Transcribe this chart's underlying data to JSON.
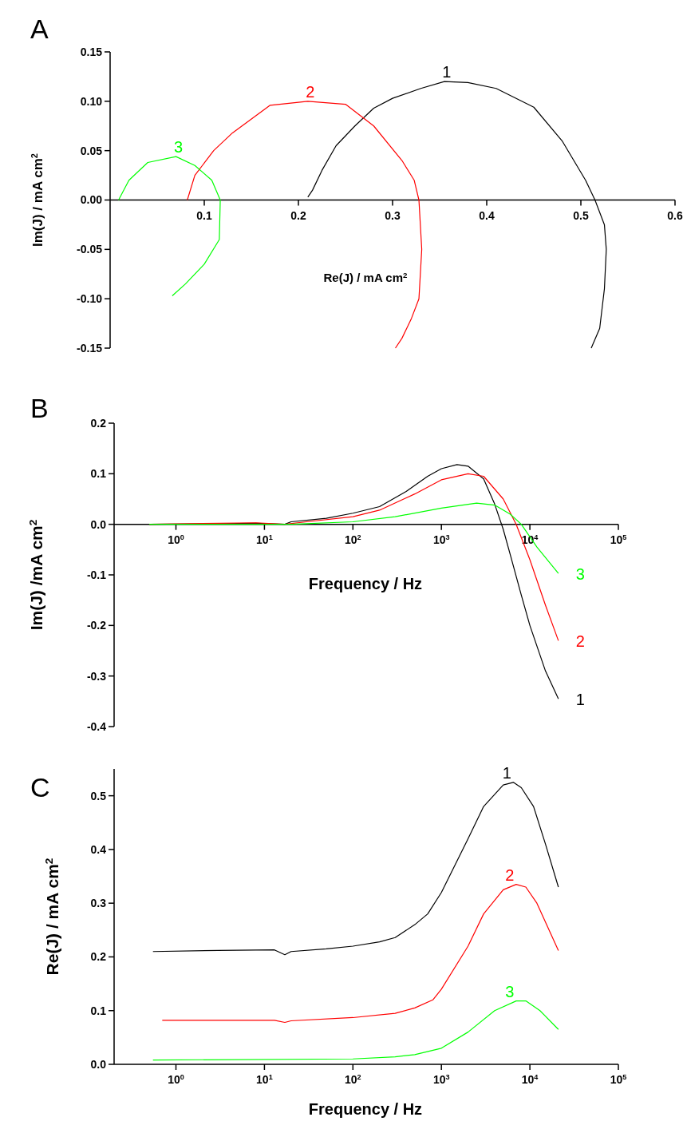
{
  "chart_data": [
    {
      "type": "line",
      "title": "A",
      "xlabel": "Re(J) / mA cm$^{2}$",
      "ylabel": "Im(J)  / mA cm$^{2}$",
      "xlim": [
        0,
        0.6
      ],
      "xticks": [
        0.1,
        0.2,
        0.3,
        0.4,
        0.5,
        0.6
      ],
      "ylim": [
        -0.15,
        0.15
      ],
      "yticks": [
        {
          "value": -0.15,
          "label": "-0.15"
        },
        {
          "value": -0.1,
          "label": "-0.10"
        },
        {
          "value": -0.05,
          "label": "-0.05"
        },
        {
          "value": 0,
          "label": "0.00"
        },
        {
          "value": 0.05,
          "label": "0.05"
        },
        {
          "value": 0.1,
          "label": "0.10"
        },
        {
          "value": 0.15,
          "label": "0.15"
        }
      ],
      "grid": false,
      "series": [
        {
          "name": "1",
          "color": "#000000",
          "x": [
            0.21,
            0.215,
            0.225,
            0.24,
            0.26,
            0.28,
            0.3,
            0.33,
            0.355,
            0.38,
            0.41,
            0.45,
            0.48,
            0.505,
            0.515,
            0.525,
            0.527,
            0.525,
            0.52,
            0.511
          ],
          "values": [
            0.003,
            0.01,
            0.03,
            0.055,
            0.075,
            0.093,
            0.103,
            0.113,
            0.12,
            0.119,
            0.113,
            0.094,
            0.06,
            0.02,
            0,
            -0.025,
            -0.05,
            -0.09,
            -0.13,
            -0.15
          ]
        },
        {
          "name": "2",
          "color": "#ff0000",
          "x": [
            0.082,
            0.09,
            0.11,
            0.13,
            0.17,
            0.21,
            0.25,
            0.28,
            0.31,
            0.323,
            0.328,
            0.331,
            0.328,
            0.32,
            0.31,
            0.303
          ],
          "values": [
            0,
            0.025,
            0.05,
            0.068,
            0.096,
            0.1,
            0.097,
            0.075,
            0.04,
            0.02,
            0,
            -0.05,
            -0.1,
            -0.12,
            -0.14,
            -0.15
          ]
        },
        {
          "name": "3",
          "color": "#00ff00",
          "x": [
            0.009,
            0.02,
            0.04,
            0.07,
            0.09,
            0.108,
            0.117,
            0.116,
            0.1,
            0.08,
            0.066
          ],
          "values": [
            0,
            0.02,
            0.038,
            0.044,
            0.035,
            0.02,
            0,
            -0.04,
            -0.065,
            -0.085,
            -0.097
          ]
        }
      ]
    },
    {
      "type": "line",
      "title": "B",
      "xlabel": "Frequency / Hz",
      "ylabel": "Im(J) /mA cm$^{2}$",
      "log": "x",
      "xlim": [
        0.2,
        100000
      ],
      "xticks": [
        {
          "value": 1,
          "label": "10$^{0}$"
        },
        {
          "value": 10,
          "label": "10$^{1}$"
        },
        {
          "value": 100,
          "label": "10$^{2}$"
        },
        {
          "value": 1000,
          "label": "10$^{3}$"
        },
        {
          "value": 10000,
          "label": "10$^{4}$"
        },
        {
          "value": 100000,
          "label": "10$^{5}$"
        }
      ],
      "ylim": [
        -0.4,
        0.2
      ],
      "yticks": [
        -0.4,
        -0.3,
        -0.2,
        -0.1,
        {
          "value": 0,
          "label": "0.0"
        },
        0.1,
        0.2
      ],
      "grid": false,
      "series": [
        {
          "name": "1",
          "color": "#000000",
          "x": [
            0.5,
            8,
            17,
            20,
            50,
            100,
            200,
            400,
            700,
            1000,
            1500,
            2000,
            3000,
            4000,
            5000,
            6000,
            8000,
            10000,
            15000,
            21000
          ],
          "values": [
            0,
            0.002,
            0,
            0.005,
            0.012,
            0.022,
            0.035,
            0.065,
            0.095,
            0.11,
            0.118,
            0.115,
            0.09,
            0.04,
            -0.01,
            -0.06,
            -0.14,
            -0.2,
            -0.29,
            -0.345
          ]
        },
        {
          "name": "2",
          "color": "#ff0000",
          "x": [
            0.5,
            8,
            17,
            30,
            100,
            200,
            500,
            1000,
            2000,
            3000,
            5000,
            7000,
            10000,
            15000,
            21000
          ],
          "values": [
            0,
            0.003,
            0,
            0.005,
            0.015,
            0.028,
            0.06,
            0.088,
            0.1,
            0.095,
            0.05,
            0,
            -0.07,
            -0.16,
            -0.23
          ]
        },
        {
          "name": "3",
          "color": "#00ff00",
          "x": [
            0.5,
            20,
            100,
            300,
            1000,
            2500,
            4000,
            6000,
            8000,
            12000,
            21000
          ],
          "values": [
            0,
            0,
            0.005,
            0.015,
            0.032,
            0.042,
            0.038,
            0.02,
            0,
            -0.045,
            -0.097
          ]
        }
      ]
    },
    {
      "type": "line",
      "title": "C",
      "xlabel": "Frequency / Hz",
      "ylabel": "Re(J) / mA cm$^{2}$",
      "log": "x",
      "xlim": [
        0.2,
        100000
      ],
      "xticks": [
        {
          "value": 1,
          "label": "10$^{0}$"
        },
        {
          "value": 10,
          "label": "10$^{1}$"
        },
        {
          "value": 100,
          "label": "10$^{2}$"
        },
        {
          "value": 1000,
          "label": "10$^{3}$"
        },
        {
          "value": 10000,
          "label": "10$^{4}$"
        },
        {
          "value": 100000,
          "label": "10$^{5}$"
        }
      ],
      "ylim": [
        0,
        0.55
      ],
      "yticks": [
        {
          "value": 0,
          "label": "0.0"
        },
        0.1,
        0.2,
        0.3,
        0.4,
        0.5
      ],
      "grid": false,
      "series": [
        {
          "name": "1",
          "color": "#000000",
          "x": [
            0.55,
            3,
            13,
            17,
            20,
            50,
            100,
            200,
            300,
            500,
            700,
            1000,
            2000,
            3000,
            5000,
            6500,
            8000,
            11000,
            15000,
            21000
          ],
          "values": [
            0.21,
            0.212,
            0.213,
            0.204,
            0.21,
            0.215,
            0.22,
            0.228,
            0.236,
            0.26,
            0.28,
            0.32,
            0.42,
            0.48,
            0.52,
            0.525,
            0.515,
            0.48,
            0.41,
            0.33
          ]
        },
        {
          "name": "2",
          "color": "#ff0000",
          "x": [
            0.7,
            13,
            17,
            20,
            100,
            300,
            500,
            800,
            1000,
            2000,
            3000,
            5000,
            7000,
            9000,
            12000,
            21000
          ],
          "values": [
            0.082,
            0.082,
            0.078,
            0.081,
            0.087,
            0.095,
            0.105,
            0.12,
            0.14,
            0.22,
            0.28,
            0.325,
            0.335,
            0.33,
            0.3,
            0.212
          ]
        },
        {
          "name": "3",
          "color": "#00ff00",
          "x": [
            0.55,
            100,
            300,
            500,
            1000,
            2000,
            4000,
            7000,
            9000,
            13000,
            21000
          ],
          "values": [
            0.008,
            0.01,
            0.014,
            0.018,
            0.03,
            0.06,
            0.1,
            0.118,
            0.118,
            0.1,
            0.065
          ]
        }
      ]
    }
  ]
}
